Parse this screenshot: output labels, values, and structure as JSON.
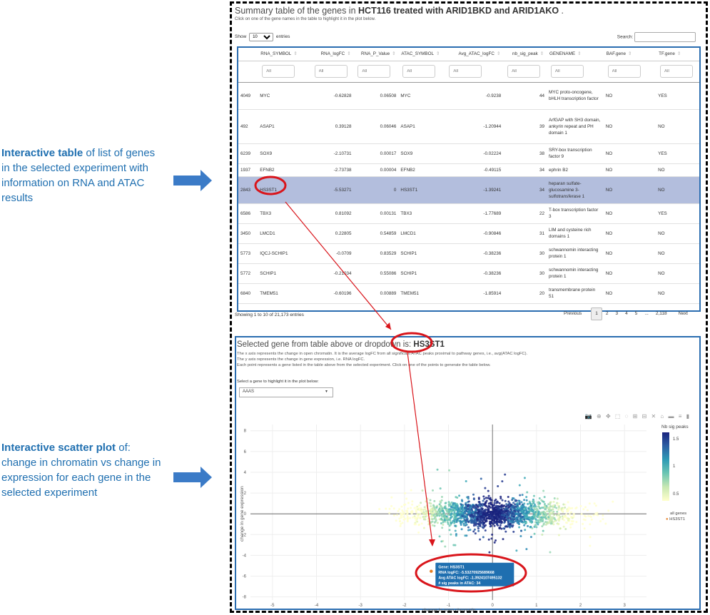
{
  "annotations": {
    "table_label_bold": "Interactive table",
    "table_label_rest": " of list of genes in the selected experiment with information on RNA and ATAC results",
    "plot_label_bold": "Interactive scatter plot",
    "plot_label_rest": " of: change in chromatin vs change in expression for each gene in the selected experiment"
  },
  "table_panel": {
    "title_prefix": "Summary table of the genes in ",
    "title_bold": "HCT116 treated with ARID1BKD and ARID1AKO",
    "title_suffix": " .",
    "subtitle": "Click on one of the gene names in the table to highlight it in the plot below.",
    "show_label": "Show",
    "show_value": "10",
    "entries_label": "entries",
    "search_label": "Search:",
    "columns": [
      "",
      "RNA_SYMBOL",
      "RNA_logFC",
      "RNA_P_Value",
      "ATAC_SYMBOL",
      "Avg_ATAC_logFC",
      "nb_sig_peak",
      "GENENAME",
      "BAF.gene",
      "TF.gene"
    ],
    "filter_placeholder": "All",
    "rows": [
      {
        "id": "4049",
        "rna_symbol": "MYC",
        "rna_logfc": "-0.62828",
        "rna_p": "0.06508",
        "atac_symbol": "MYC",
        "avg_atac": "-0.9238",
        "nb_sig": "44",
        "genename": "MYC proto-oncogene, bHLH transcription factor",
        "baf": "NO",
        "tf": "YES"
      },
      {
        "id": "492",
        "rna_symbol": "ASAP1",
        "rna_logfc": "0.39128",
        "rna_p": "0.06046",
        "atac_symbol": "ASAP1",
        "avg_atac": "-1.20944",
        "nb_sig": "39",
        "genename": "ArfGAP with SH3 domain, ankyrin repeat and PH domain 1",
        "baf": "NO",
        "tf": "NO"
      },
      {
        "id": "6239",
        "rna_symbol": "SOX9",
        "rna_logfc": "-2.10731",
        "rna_p": "0.00017",
        "atac_symbol": "SOX9",
        "avg_atac": "-0.02224",
        "nb_sig": "38",
        "genename": "SRY-box transcription factor 9",
        "baf": "NO",
        "tf": "YES"
      },
      {
        "id": "1937",
        "rna_symbol": "EFNB2",
        "rna_logfc": "-2.73738",
        "rna_p": "0.00004",
        "atac_symbol": "EFNB2",
        "avg_atac": "-0.49115",
        "nb_sig": "34",
        "genename": "ephrin B2",
        "baf": "NO",
        "tf": "NO"
      },
      {
        "id": "2843",
        "rna_symbol": "HS3ST1",
        "rna_logfc": "-5.53271",
        "rna_p": "0",
        "atac_symbol": "HS3ST1",
        "avg_atac": "-1.39241",
        "nb_sig": "34",
        "genename": "heparan sulfate-glucosamine 3-sulfotransferase 1",
        "baf": "NO",
        "tf": "NO"
      },
      {
        "id": "6586",
        "rna_symbol": "TBX3",
        "rna_logfc": "0.81092",
        "rna_p": "0.00131",
        "atac_symbol": "TBX3",
        "avg_atac": "-1.77689",
        "nb_sig": "22",
        "genename": "T-box transcription factor 3",
        "baf": "NO",
        "tf": "YES"
      },
      {
        "id": "3450",
        "rna_symbol": "LMCD1",
        "rna_logfc": "0.22805",
        "rna_p": "0.54859",
        "atac_symbol": "LMCD1",
        "avg_atac": "-0.90846",
        "nb_sig": "31",
        "genename": "LIM and cysteine rich domains 1",
        "baf": "NO",
        "tf": "NO"
      },
      {
        "id": "5773",
        "rna_symbol": "IQCJ-SCHIP1",
        "rna_logfc": "-0.0709",
        "rna_p": "0.83529",
        "atac_symbol": "SCHIP1",
        "avg_atac": "-0.38236",
        "nb_sig": "30",
        "genename": "schwannomin interacting protein 1",
        "baf": "NO",
        "tf": "NO"
      },
      {
        "id": "5772",
        "rna_symbol": "SCHIP1",
        "rna_logfc": "-0.21034",
        "rna_p": "0.55086",
        "atac_symbol": "SCHIP1",
        "avg_atac": "-0.38236",
        "nb_sig": "30",
        "genename": "schwannomin interacting protein 1",
        "baf": "NO",
        "tf": "NO"
      },
      {
        "id": "6840",
        "rna_symbol": "TMEM51",
        "rna_logfc": "-0.60196",
        "rna_p": "0.00889",
        "atac_symbol": "TMEM51",
        "avg_atac": "-1.85914",
        "nb_sig": "20",
        "genename": "transmembrane protein 51",
        "baf": "NO",
        "tf": "NO"
      }
    ],
    "info": "Showing 1 to 10 of 21,173 entries",
    "pager": [
      "Previous",
      "1",
      "2",
      "3",
      "4",
      "5",
      "...",
      "2,118",
      "Next"
    ]
  },
  "plot_panel": {
    "title_prefix": "Selected gene from table above or dropdown is: ",
    "title_gene": "HS3ST1",
    "desc1": "The x axis represents the change in open chromatin. It is the average logFC from all significant ATAC peaks proximal to pathway genes, i.e., avg(ATAC logFC).",
    "desc2": "The y axis represents the change in gene expression, i.e. RNA logFC.",
    "desc3": "Each point represents a gene listed in the table above from the selected experiment. Click on one of the points to generate the table below.",
    "dropdown_label": "Select a gene to highlight it in the plot below:",
    "dropdown_value": "AAAS",
    "toolbar_icons": [
      "camera-icon",
      "zoom-icon",
      "pan-icon",
      "select-icon",
      "lasso-icon",
      "zoom-in-icon",
      "zoom-out-icon",
      "autoscale-icon",
      "home-icon",
      "spike-icon",
      "compare-icon",
      "bar-icon"
    ],
    "colorbar_title": "Nb sig peaks",
    "colorbar_ticks": [
      "1.5",
      "1",
      "0.5"
    ],
    "legend_all": "all genes",
    "legend_hl": "HS3ST1",
    "tooltip": {
      "gene": "Gene:  HS3ST1",
      "rna": "RNA logFC:  -5.53270925689668",
      "atac": "Avg ATAC logFC:  -1.3924107495132",
      "peaks": "# sig peaks in ATAC:  34"
    }
  },
  "chart_data": {
    "type": "scatter",
    "xlabel": "change in open chromatin",
    "ylabel": "change in gene expression",
    "xlim": [
      -5.5,
      3.5
    ],
    "ylim": [
      -8.3,
      8.6
    ],
    "xticks": [
      -5,
      -4,
      -3,
      -2,
      -1,
      0,
      1,
      2,
      3
    ],
    "yticks": [
      8,
      6,
      4,
      2,
      0,
      -2,
      -4,
      -6,
      -8
    ],
    "highlight": {
      "name": "HS3ST1",
      "x": -1.392,
      "y": -5.533
    },
    "colors": {
      "highlight": "#e67e22",
      "accent": "#1f6fb0",
      "annotation": "#d9151b"
    }
  }
}
